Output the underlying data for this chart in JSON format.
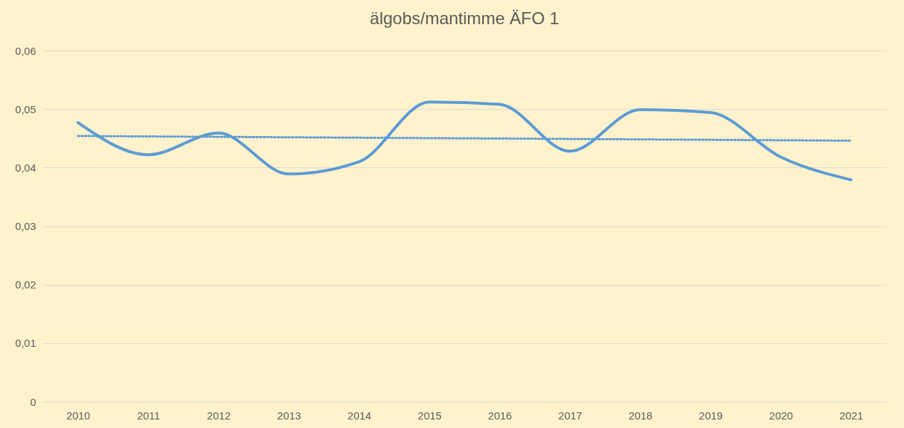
{
  "chart_data": {
    "type": "line",
    "title": "älgobs/mantimme ÄFO 1",
    "categories": [
      "2010",
      "2011",
      "2012",
      "2013",
      "2014",
      "2015",
      "2016",
      "2017",
      "2018",
      "2019",
      "2020",
      "2021"
    ],
    "series": [
      {
        "color": "#5b9bd5",
        "values": [
          0.0477,
          0.0422,
          0.0459,
          0.0389,
          0.041,
          0.0512,
          0.0508,
          0.0428,
          0.0499,
          0.0494,
          0.0418,
          0.0379
        ]
      },
      {
        "type": "line",
        "color": "#5b9bd5",
        "line_style": "dotted",
        "values": [
          0.0454,
          null,
          null,
          null,
          null,
          null,
          null,
          null,
          null,
          null,
          null,
          0.0446
        ]
      }
    ],
    "ylim": [
      0,
      0.06
    ],
    "yticks": [
      0,
      {
        "value": 0.01,
        "label": "0,01"
      },
      {
        "value": 0.02,
        "label": "0,02"
      },
      {
        "value": 0.03,
        "label": "0,03"
      },
      {
        "value": 0.04,
        "label": "0,04"
      },
      {
        "value": 0.05,
        "label": "0,05"
      },
      {
        "value": 0.06,
        "label": "0,06"
      }
    ],
    "grid": "y",
    "marker": "none",
    "line_style": "solid"
  }
}
